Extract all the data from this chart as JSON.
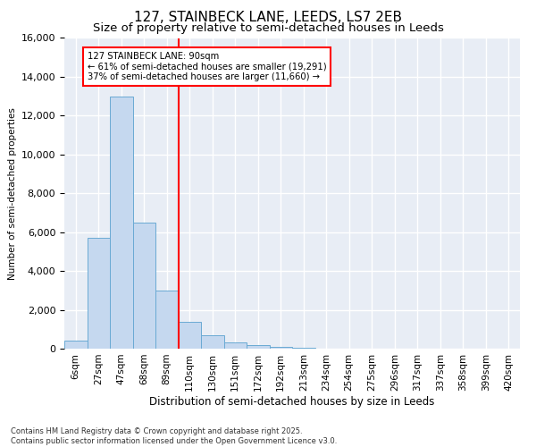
{
  "title1": "127, STAINBECK LANE, LEEDS, LS7 2EB",
  "title2": "Size of property relative to semi-detached houses in Leeds",
  "xlabel": "Distribution of semi-detached houses by size in Leeds",
  "ylabel": "Number of semi-detached properties",
  "footnote1": "Contains HM Land Registry data © Crown copyright and database right 2025.",
  "footnote2": "Contains public sector information licensed under the Open Government Licence v3.0.",
  "bin_labels": [
    "6sqm",
    "27sqm",
    "47sqm",
    "68sqm",
    "89sqm",
    "110sqm",
    "130sqm",
    "151sqm",
    "172sqm",
    "192sqm",
    "213sqm",
    "234sqm",
    "254sqm",
    "275sqm",
    "296sqm",
    "317sqm",
    "337sqm",
    "358sqm",
    "399sqm",
    "420sqm"
  ],
  "bar_values": [
    400,
    5700,
    13000,
    6500,
    3000,
    1400,
    700,
    300,
    200,
    100,
    60,
    15,
    5,
    2,
    1,
    0,
    0,
    0,
    0,
    0
  ],
  "bar_color": "#c5d8ef",
  "bar_edge_color": "#6aaad4",
  "vline_color": "red",
  "annotation_title": "127 STAINBECK LANE: 90sqm",
  "annotation_line1": "← 61% of semi-detached houses are smaller (19,291)",
  "annotation_line2": "37% of semi-detached houses are larger (11,660) →",
  "annotation_box_color": "red",
  "ylim": [
    0,
    16000
  ],
  "yticks": [
    0,
    2000,
    4000,
    6000,
    8000,
    10000,
    12000,
    14000,
    16000
  ],
  "bg_color": "#e8edf5",
  "grid_color": "white",
  "title1_fontsize": 11,
  "title2_fontsize": 9.5,
  "vline_bin_index": 4
}
